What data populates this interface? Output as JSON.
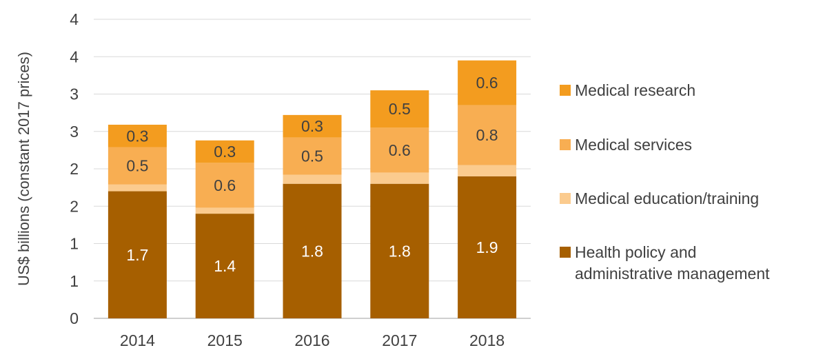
{
  "chart_data": {
    "type": "bar",
    "stacked": true,
    "categories": [
      "2014",
      "2015",
      "2016",
      "2017",
      "2018"
    ],
    "series": [
      {
        "name": "Health policy and administrative management",
        "color": "#A65F00",
        "values": [
          1.7,
          1.4,
          1.8,
          1.8,
          1.9
        ],
        "labels": [
          "1.7",
          "1.4",
          "1.8",
          "1.8",
          "1.9"
        ],
        "label_color": "#ffffff"
      },
      {
        "name": "Medical education/training",
        "color": "#FBCB8E",
        "values": [
          0.09,
          0.08,
          0.12,
          0.15,
          0.15
        ],
        "labels": [
          "",
          "",
          "",
          "",
          ""
        ],
        "label_color": "#404040"
      },
      {
        "name": "Medical services",
        "color": "#F8AE52",
        "values": [
          0.5,
          0.6,
          0.5,
          0.6,
          0.8
        ],
        "labels": [
          "0.5",
          "0.6",
          "0.5",
          "0.6",
          "0.8"
        ],
        "label_color": "#404040"
      },
      {
        "name": "Medical research",
        "color": "#F39C1F",
        "values": [
          0.3,
          0.3,
          0.3,
          0.5,
          0.6
        ],
        "labels": [
          "0.3",
          "0.3",
          "0.3",
          "0.5",
          "0.6"
        ],
        "label_color": "#404040"
      }
    ],
    "ylabel": "US$ billions (constant 2017 prices)",
    "ylim": [
      0,
      4
    ],
    "yticks": [
      0,
      0.5,
      1,
      1.5,
      2,
      2.5,
      3,
      3.5,
      4
    ],
    "ytick_labels": [
      "0",
      "1",
      "1",
      "2",
      "2",
      "3",
      "3",
      "4",
      "4"
    ],
    "grid": true,
    "legend_position": "right",
    "legend_order": [
      "Medical research",
      "Medical services",
      "Medical education/training",
      "Health policy and administrative management"
    ]
  }
}
